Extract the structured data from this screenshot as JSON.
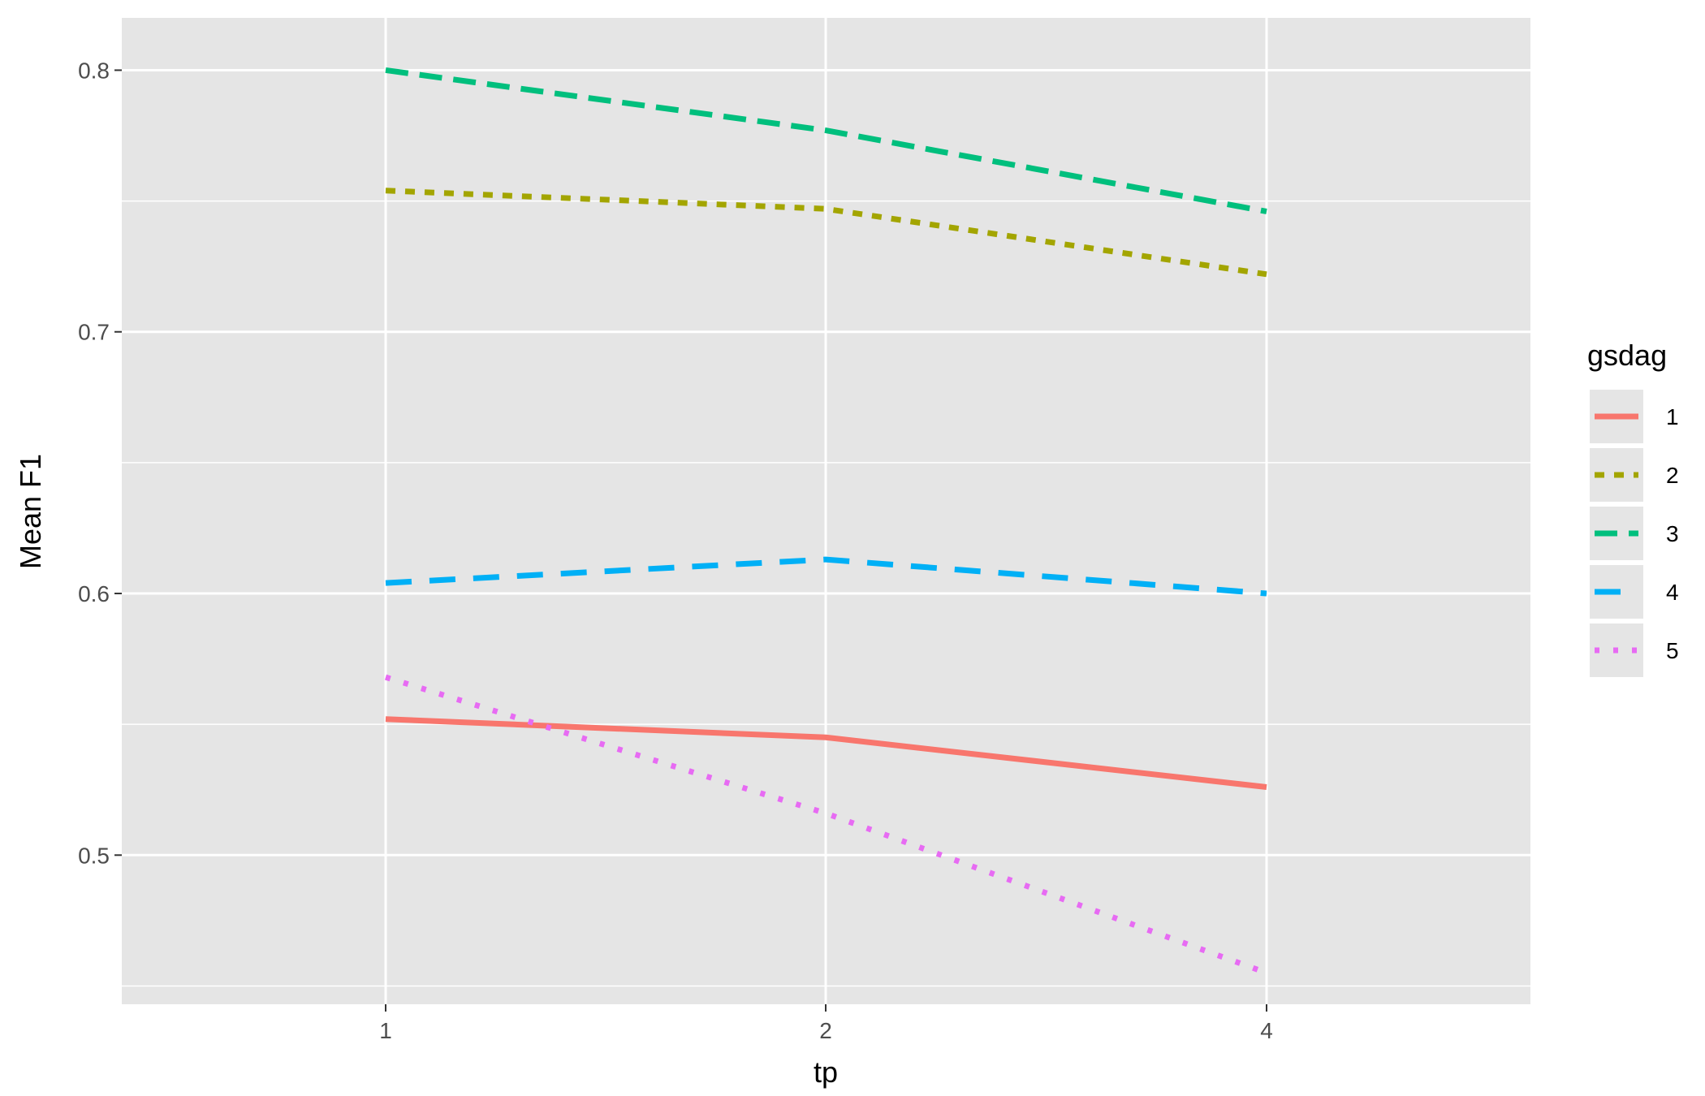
{
  "chart_data": {
    "type": "line",
    "xlabel": "tp",
    "ylabel": "Mean F1",
    "x_categories": [
      "1",
      "2",
      "4"
    ],
    "y_ticks": [
      "0.5",
      "0.6",
      "0.7",
      "0.8"
    ],
    "ylim": [
      0.443,
      0.82
    ],
    "grid": true,
    "background": "#e5e5e5",
    "legend": {
      "title": "gsdag",
      "placement": "right"
    },
    "series": [
      {
        "name": "1",
        "values": [
          0.552,
          0.545,
          0.526
        ],
        "color": "#f8766d",
        "linetype": "solid"
      },
      {
        "name": "2",
        "values": [
          0.754,
          0.747,
          0.722
        ],
        "color": "#a3a500",
        "linetype": "dashed"
      },
      {
        "name": "3",
        "values": [
          0.8,
          0.777,
          0.746
        ],
        "color": "#00bf7d",
        "linetype": "longdash"
      },
      {
        "name": "4",
        "values": [
          0.604,
          0.613,
          0.6
        ],
        "color": "#00b0f6",
        "linetype": "longdash-sparse"
      },
      {
        "name": "5",
        "values": [
          0.568,
          0.516,
          0.455
        ],
        "color": "#e76bf3",
        "linetype": "dotted"
      }
    ]
  }
}
